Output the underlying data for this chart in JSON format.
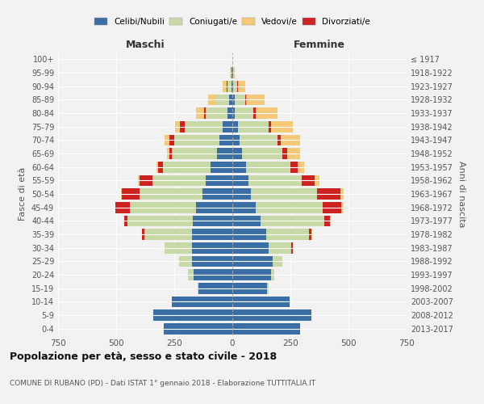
{
  "age_groups": [
    "0-4",
    "5-9",
    "10-14",
    "15-19",
    "20-24",
    "25-29",
    "30-34",
    "35-39",
    "40-44",
    "45-49",
    "50-54",
    "55-59",
    "60-64",
    "65-69",
    "70-74",
    "75-79",
    "80-84",
    "85-89",
    "90-94",
    "95-99",
    "100+"
  ],
  "birth_years": [
    "2013-2017",
    "2008-2012",
    "2003-2007",
    "1998-2002",
    "1993-1997",
    "1988-1992",
    "1983-1987",
    "1978-1982",
    "1973-1977",
    "1968-1972",
    "1963-1967",
    "1958-1962",
    "1953-1957",
    "1948-1952",
    "1943-1947",
    "1938-1942",
    "1933-1937",
    "1928-1932",
    "1923-1927",
    "1918-1922",
    "≤ 1917"
  ],
  "colors": {
    "celibe": "#3a6ea5",
    "coniugato": "#c8d9a8",
    "vedovo": "#f5c97a",
    "divorziato": "#cc2222"
  },
  "maschi": {
    "celibe": [
      295,
      340,
      260,
      145,
      165,
      175,
      175,
      175,
      170,
      155,
      130,
      115,
      95,
      65,
      55,
      40,
      20,
      15,
      5,
      2,
      0
    ],
    "coniugato": [
      0,
      0,
      0,
      5,
      25,
      55,
      115,
      205,
      280,
      285,
      270,
      230,
      205,
      195,
      195,
      165,
      95,
      55,
      15,
      5,
      0
    ],
    "vedovo": [
      0,
      0,
      0,
      0,
      0,
      0,
      0,
      0,
      0,
      0,
      5,
      5,
      8,
      10,
      20,
      20,
      35,
      35,
      15,
      5,
      0
    ],
    "divorziato": [
      0,
      0,
      0,
      0,
      0,
      0,
      0,
      8,
      15,
      65,
      75,
      55,
      20,
      10,
      20,
      20,
      5,
      0,
      5,
      0,
      0
    ]
  },
  "femmine": {
    "nubile": [
      290,
      340,
      245,
      150,
      165,
      175,
      155,
      145,
      120,
      100,
      80,
      70,
      60,
      40,
      30,
      25,
      10,
      10,
      5,
      2,
      0
    ],
    "coniugata": [
      0,
      0,
      0,
      5,
      15,
      40,
      100,
      185,
      275,
      290,
      285,
      230,
      190,
      175,
      165,
      130,
      80,
      45,
      15,
      5,
      0
    ],
    "vedova": [
      0,
      0,
      0,
      0,
      0,
      0,
      0,
      5,
      5,
      5,
      15,
      20,
      30,
      55,
      80,
      95,
      95,
      80,
      30,
      5,
      0
    ],
    "divorziata": [
      0,
      0,
      0,
      0,
      0,
      0,
      5,
      10,
      25,
      80,
      100,
      55,
      30,
      20,
      15,
      10,
      10,
      5,
      5,
      0,
      0
    ]
  },
  "xlim": 750,
  "title": "Popolazione per età, sesso e stato civile - 2018",
  "subtitle": "COMUNE DI RUBANO (PD) - Dati ISTAT 1° gennaio 2018 - Elaborazione TUTTITALIA.IT",
  "ylabel_left": "Maschi",
  "ylabel_right": "Femmine",
  "xlabel_fasce": "Fasce di età",
  "xlabel_anni": "Anni di nascita",
  "legend_labels": [
    "Celibi/Nubili",
    "Coniugati/e",
    "Vedovi/e",
    "Divorziati/e"
  ],
  "legend_colors": [
    "#3a6ea5",
    "#c8d9a8",
    "#f5c97a",
    "#cc2222"
  ],
  "bg_color": "#f2f2f2"
}
